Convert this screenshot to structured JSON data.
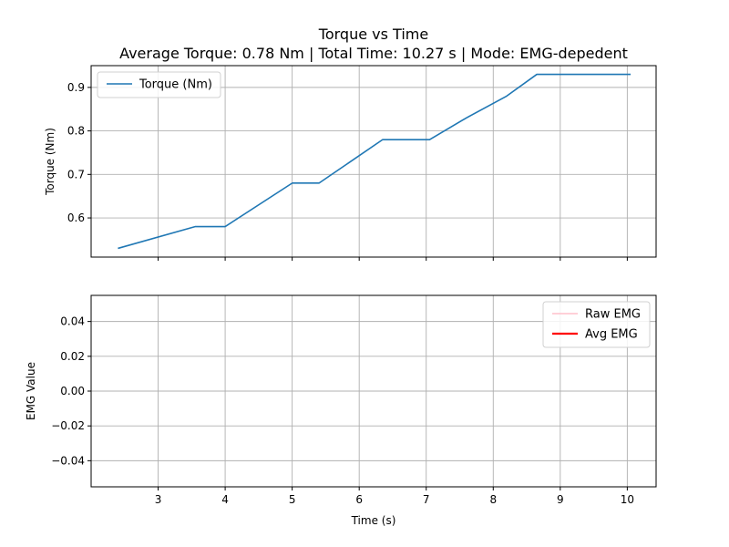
{
  "figure": {
    "title": "Torque vs Time",
    "subtitle": "Average Torque: 0.78 Nm | Total Time: 10.27 s | Mode: EMG-depedent"
  },
  "chart_data": [
    {
      "type": "line",
      "ylabel": "Torque (Nm)",
      "xlim": [
        2.0,
        10.43
      ],
      "ylim": [
        0.51,
        0.95
      ],
      "xticks": [
        3,
        4,
        5,
        6,
        7,
        8,
        9,
        10
      ],
      "yticks": [
        0.6,
        0.7,
        0.8,
        0.9
      ],
      "ytick_labels": [
        "0.6",
        "0.7",
        "0.8",
        "0.9"
      ],
      "grid": true,
      "legend": "upper-left",
      "series": [
        {
          "name": "Torque (Nm)",
          "color": "#1f77b4",
          "x": [
            2.4,
            3.55,
            4.0,
            5.0,
            5.4,
            6.35,
            7.05,
            7.6,
            8.2,
            8.65,
            10.05
          ],
          "y": [
            0.53,
            0.58,
            0.58,
            0.68,
            0.68,
            0.78,
            0.78,
            0.83,
            0.88,
            0.93,
            0.93
          ]
        }
      ]
    },
    {
      "type": "line",
      "xlabel": "Time (s)",
      "ylabel": "EMG Value",
      "xlim": [
        2.0,
        10.43
      ],
      "ylim": [
        -0.055,
        0.055
      ],
      "xticks": [
        3,
        4,
        5,
        6,
        7,
        8,
        9,
        10
      ],
      "xtick_labels": [
        "3",
        "4",
        "5",
        "6",
        "7",
        "8",
        "9",
        "10"
      ],
      "yticks": [
        -0.04,
        -0.02,
        0.0,
        0.02,
        0.04
      ],
      "ytick_labels": [
        "−0.04",
        "−0.02",
        "0.00",
        "0.02",
        "0.04"
      ],
      "grid": true,
      "legend": "upper-right",
      "series": [
        {
          "name": "Raw EMG",
          "color": "#ffc0cb",
          "x": [],
          "y": []
        },
        {
          "name": "Avg EMG",
          "color": "#ff0000",
          "x": [],
          "y": []
        }
      ]
    }
  ]
}
